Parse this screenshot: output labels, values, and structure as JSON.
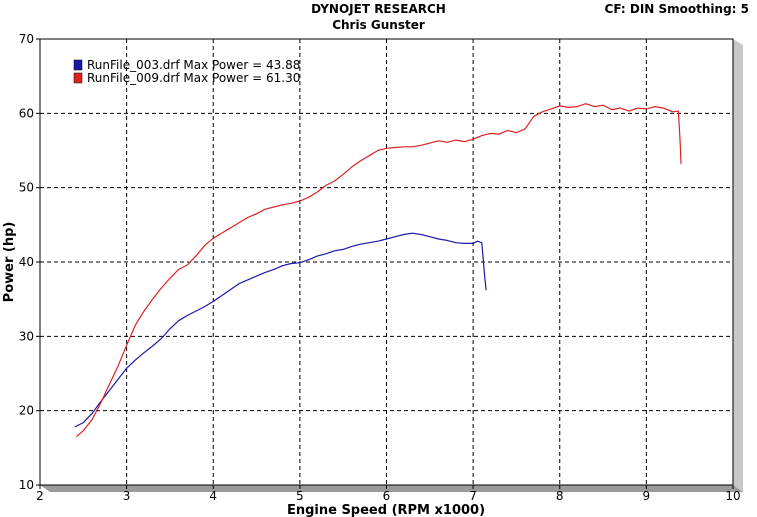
{
  "header": {
    "title": "DYNOJET RESEARCH",
    "subtitle": "Chris Gunster",
    "info": "CF: DIN  Smoothing: 5"
  },
  "chart_data": {
    "type": "line",
    "title": "DYNOJET RESEARCH",
    "subtitle": "Chris Gunster",
    "xlabel": "Engine Speed (RPM x1000)",
    "ylabel": "Power (hp)",
    "xlim": [
      2,
      10
    ],
    "ylim": [
      10,
      70
    ],
    "xticks": [
      2,
      3,
      4,
      5,
      6,
      7,
      8,
      9,
      10
    ],
    "yticks": [
      10,
      20,
      30,
      40,
      50,
      60,
      70
    ],
    "grid": true,
    "grid_style": "dashed",
    "legend_position": "top-left",
    "series": [
      {
        "name": "RunFile_003.drf Max Power = 43.88",
        "color": "#1a1aa8",
        "points": [
          [
            2.4,
            17.8
          ],
          [
            2.5,
            18.4
          ],
          [
            2.6,
            19.6
          ],
          [
            2.7,
            21.2
          ],
          [
            2.8,
            22.7
          ],
          [
            2.9,
            24.2
          ],
          [
            3.0,
            25.7
          ],
          [
            3.1,
            26.8
          ],
          [
            3.2,
            27.8
          ],
          [
            3.3,
            28.7
          ],
          [
            3.4,
            29.7
          ],
          [
            3.5,
            31.0
          ],
          [
            3.6,
            32.1
          ],
          [
            3.7,
            32.8
          ],
          [
            3.8,
            33.4
          ],
          [
            3.9,
            34.0
          ],
          [
            4.0,
            34.7
          ],
          [
            4.1,
            35.5
          ],
          [
            4.2,
            36.3
          ],
          [
            4.3,
            37.1
          ],
          [
            4.4,
            37.6
          ],
          [
            4.5,
            38.1
          ],
          [
            4.6,
            38.6
          ],
          [
            4.7,
            39.0
          ],
          [
            4.8,
            39.5
          ],
          [
            4.9,
            39.8
          ],
          [
            5.0,
            39.9
          ],
          [
            5.1,
            40.3
          ],
          [
            5.2,
            40.8
          ],
          [
            5.3,
            41.1
          ],
          [
            5.4,
            41.5
          ],
          [
            5.5,
            41.7
          ],
          [
            5.6,
            42.1
          ],
          [
            5.7,
            42.4
          ],
          [
            5.8,
            42.6
          ],
          [
            5.9,
            42.8
          ],
          [
            6.0,
            43.1
          ],
          [
            6.1,
            43.4
          ],
          [
            6.2,
            43.7
          ],
          [
            6.3,
            43.88
          ],
          [
            6.4,
            43.7
          ],
          [
            6.5,
            43.4
          ],
          [
            6.6,
            43.1
          ],
          [
            6.7,
            42.9
          ],
          [
            6.8,
            42.6
          ],
          [
            6.9,
            42.5
          ],
          [
            7.0,
            42.5
          ],
          [
            7.05,
            42.8
          ],
          [
            7.1,
            42.6
          ],
          [
            7.13,
            38.5
          ],
          [
            7.15,
            36.2
          ]
        ]
      },
      {
        "name": "RunFile_009.drf Max Power = 61.30",
        "color": "#dd2222",
        "points": [
          [
            2.42,
            16.5
          ],
          [
            2.5,
            17.3
          ],
          [
            2.6,
            18.8
          ],
          [
            2.7,
            21.0
          ],
          [
            2.8,
            23.5
          ],
          [
            2.9,
            26.0
          ],
          [
            3.0,
            28.8
          ],
          [
            3.1,
            31.5
          ],
          [
            3.2,
            33.4
          ],
          [
            3.3,
            35.0
          ],
          [
            3.4,
            36.5
          ],
          [
            3.5,
            37.8
          ],
          [
            3.6,
            39.0
          ],
          [
            3.7,
            39.6
          ],
          [
            3.8,
            40.8
          ],
          [
            3.9,
            42.2
          ],
          [
            4.0,
            43.2
          ],
          [
            4.1,
            43.9
          ],
          [
            4.2,
            44.6
          ],
          [
            4.3,
            45.3
          ],
          [
            4.4,
            46.0
          ],
          [
            4.5,
            46.5
          ],
          [
            4.6,
            47.1
          ],
          [
            4.7,
            47.4
          ],
          [
            4.8,
            47.7
          ],
          [
            4.9,
            47.9
          ],
          [
            5.0,
            48.2
          ],
          [
            5.1,
            48.7
          ],
          [
            5.2,
            49.4
          ],
          [
            5.3,
            50.3
          ],
          [
            5.4,
            50.9
          ],
          [
            5.5,
            51.8
          ],
          [
            5.6,
            52.8
          ],
          [
            5.7,
            53.6
          ],
          [
            5.8,
            54.3
          ],
          [
            5.9,
            55.0
          ],
          [
            6.0,
            55.3
          ],
          [
            6.1,
            55.4
          ],
          [
            6.2,
            55.5
          ],
          [
            6.3,
            55.5
          ],
          [
            6.4,
            55.7
          ],
          [
            6.5,
            56.0
          ],
          [
            6.6,
            56.3
          ],
          [
            6.7,
            56.1
          ],
          [
            6.8,
            56.4
          ],
          [
            6.9,
            56.2
          ],
          [
            7.0,
            56.5
          ],
          [
            7.1,
            57.0
          ],
          [
            7.2,
            57.3
          ],
          [
            7.3,
            57.2
          ],
          [
            7.4,
            57.7
          ],
          [
            7.5,
            57.4
          ],
          [
            7.6,
            57.9
          ],
          [
            7.7,
            59.6
          ],
          [
            7.8,
            60.2
          ],
          [
            7.9,
            60.6
          ],
          [
            8.0,
            61.0
          ],
          [
            8.1,
            60.8
          ],
          [
            8.2,
            60.9
          ],
          [
            8.3,
            61.3
          ],
          [
            8.4,
            60.9
          ],
          [
            8.5,
            61.1
          ],
          [
            8.6,
            60.5
          ],
          [
            8.7,
            60.7
          ],
          [
            8.8,
            60.3
          ],
          [
            8.9,
            60.7
          ],
          [
            9.0,
            60.6
          ],
          [
            9.1,
            60.9
          ],
          [
            9.2,
            60.7
          ],
          [
            9.3,
            60.2
          ],
          [
            9.37,
            60.3
          ],
          [
            9.39,
            56.0
          ],
          [
            9.4,
            53.2
          ]
        ]
      }
    ]
  }
}
